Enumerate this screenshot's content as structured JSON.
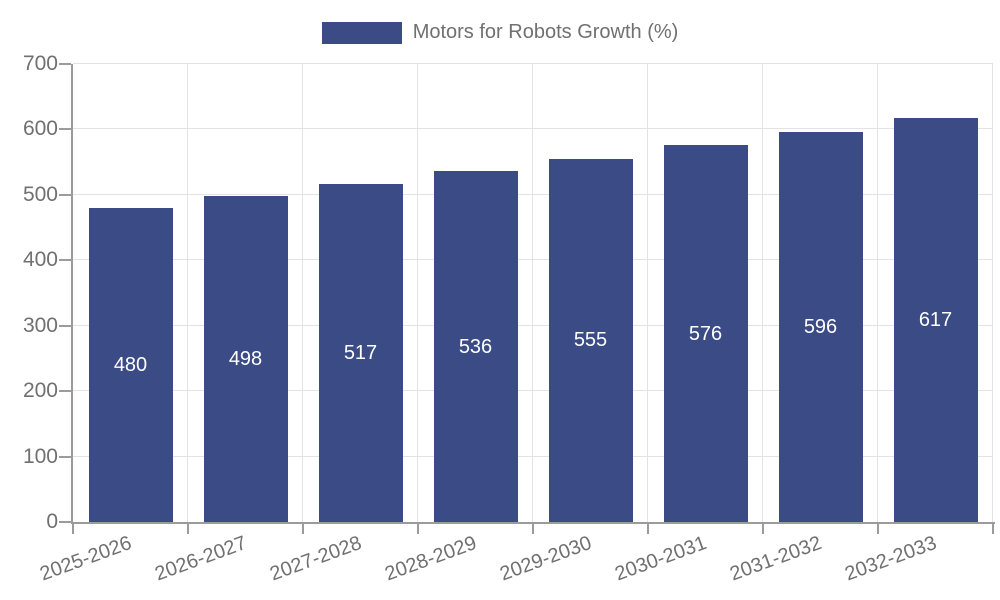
{
  "legend": {
    "label": "Motors for Robots Growth (%)"
  },
  "colors": {
    "bar": "#3a4b85",
    "grid_line": "#e3e3e3",
    "axis_line": "#9b9b9b",
    "tick_text": "#707070",
    "bar_label_text": "#ffffff"
  },
  "chart_data": {
    "type": "bar",
    "title": "Motors for Robots Growth (%)",
    "series_name": "Motors for Robots Growth (%)",
    "categories": [
      "2025-2026",
      "2026-2027",
      "2027-2028",
      "2028-2029",
      "2029-2030",
      "2030-2031",
      "2031-2032",
      "2032-2033"
    ],
    "values": [
      480,
      498,
      517,
      536,
      555,
      576,
      596,
      617
    ],
    "bar_value_labels": [
      "480",
      "498",
      "517",
      "536",
      "555",
      "576",
      "596",
      "617"
    ],
    "xlabel": "",
    "ylabel": "",
    "ylim": [
      0,
      700
    ],
    "yticks": [
      0,
      100,
      200,
      300,
      400,
      500,
      600,
      700
    ],
    "grid": true,
    "legend_position": "top-center",
    "x_label_rotation_deg": -20,
    "bar_labels_visible": true,
    "bar_label_position": "middle"
  }
}
